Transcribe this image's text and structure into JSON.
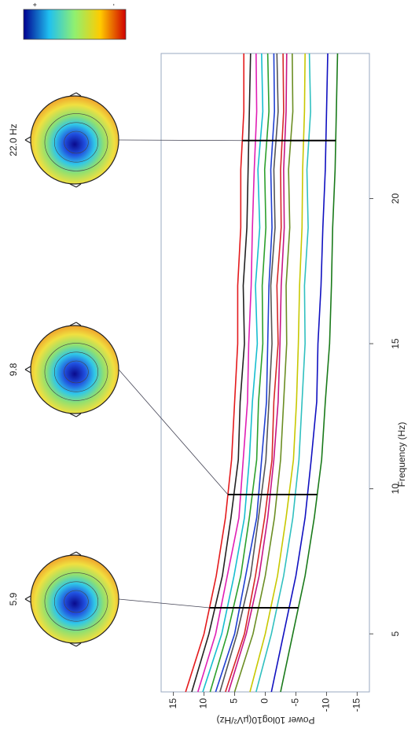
{
  "chart_data": {
    "type": "line",
    "x_label": "Frequency (Hz)",
    "y_label": "Power 10log10(µV²/Hz)",
    "x": [
      3,
      5,
      7,
      9,
      11,
      13,
      15,
      17,
      19,
      21,
      23,
      25
    ],
    "xlim": [
      3,
      25
    ],
    "xticks": [
      5,
      10,
      15,
      20
    ],
    "ylim": [
      -17,
      17
    ],
    "yticks": [
      -15,
      -10,
      -5,
      0,
      5,
      10,
      15
    ],
    "grid": false,
    "series": [
      {
        "color": "#e41a1c",
        "values": [
          13,
          10,
          8,
          6.5,
          5.5,
          5,
          4.5,
          4.5,
          4,
          4,
          3.5,
          3.5
        ]
      },
      {
        "color": "#222222",
        "values": [
          12,
          9.2,
          7,
          5.6,
          4.4,
          4.1,
          3.4,
          3.6,
          3,
          2.8,
          2.6,
          2.4
        ]
      },
      {
        "color": "#e01eb4",
        "values": [
          11,
          8.1,
          6.2,
          4.3,
          3.6,
          2.9,
          2.7,
          2.3,
          2.1,
          1.8,
          1.4,
          1.5
        ]
      },
      {
        "color": "#17becf",
        "values": [
          10.2,
          7.1,
          5.1,
          3.4,
          2.6,
          2.1,
          1.3,
          1.6,
          0.9,
          1.2,
          0.4,
          0.6
        ]
      },
      {
        "color": "#2ca02c",
        "values": [
          9,
          6.2,
          4,
          2.6,
          1.4,
          1.1,
          0.4,
          0.5,
          -0.1,
          0.1,
          -0.6,
          -0.4
        ]
      },
      {
        "color": "#1f3fd0",
        "values": [
          8.1,
          5,
          3.2,
          1.4,
          0.6,
          -0.2,
          -0.4,
          -0.6,
          -1.1,
          -0.9,
          -1.5,
          -1.4
        ]
      },
      {
        "color": "#555555",
        "values": [
          7.4,
          4.6,
          2.4,
          1.1,
          -0.1,
          -0.6,
          -1.1,
          -0.9,
          -1.6,
          -1.4,
          -2.1,
          -1.9
        ]
      },
      {
        "color": "#d62728",
        "values": [
          6.5,
          3.4,
          1.6,
          0.1,
          -1.1,
          -1.4,
          -2.1,
          -1.9,
          -2.6,
          -2.5,
          -3,
          -2.9
        ]
      },
      {
        "color": "#c71585",
        "values": [
          6,
          3.1,
          1,
          -0.4,
          -1.4,
          -2.1,
          -2.4,
          -2.6,
          -3.1,
          -3,
          -3.4,
          -3.5
        ]
      },
      {
        "color": "#6b8e23",
        "values": [
          5,
          2,
          0,
          -1.5,
          -2.5,
          -3,
          -3.5,
          -3.4,
          -4,
          -3.8,
          -4.5,
          -4.4
        ]
      },
      {
        "color": "#c8c800",
        "values": [
          2.5,
          0,
          -2,
          -3.4,
          -4.6,
          -5.1,
          -5.4,
          -5.6,
          -6,
          -6.1,
          -6.4,
          -6.5
        ]
      },
      {
        "color": "#30c0c0",
        "values": [
          1.5,
          -1,
          -3,
          -4.5,
          -5.5,
          -6,
          -6.5,
          -6.4,
          -7,
          -6.8,
          -7.4,
          -7.2
        ]
      },
      {
        "color": "#1010c0",
        "values": [
          -1,
          -3,
          -5,
          -6.5,
          -7.5,
          -8.4,
          -8.6,
          -9.1,
          -9.4,
          -9.8,
          -10,
          -10.2
        ]
      },
      {
        "color": "#1a7a1a",
        "values": [
          -2.5,
          -4.5,
          -6.5,
          -8,
          -9.2,
          -9.8,
          -10.5,
          -10.8,
          -11,
          -11.4,
          -11.6,
          -11.8
        ]
      }
    ],
    "topoplots": [
      {
        "value": 5.9,
        "label": "5.9"
      },
      {
        "value": 9.8,
        "label": "9.8"
      },
      {
        "value": 22.0,
        "label": "22.0 Hz"
      }
    ],
    "colorbar_labels": [
      "+",
      "-"
    ]
  }
}
